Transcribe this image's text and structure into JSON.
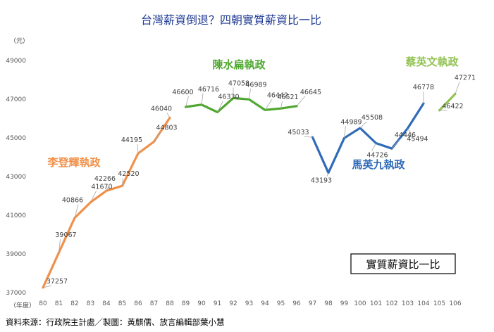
{
  "chart_data": {
    "type": "line",
    "title": "台灣薪資倒退？四朝實質薪資比一比",
    "y_unit_label": "（元）",
    "x_unit_label": "（年度）",
    "ylim": [
      37000,
      49000
    ],
    "y_ticks": [
      "37000",
      "39000",
      "41000",
      "43000",
      "45000",
      "47000",
      "49000"
    ],
    "x_ticks": [
      "80",
      "81",
      "82",
      "83",
      "84",
      "85",
      "86",
      "87",
      "88",
      "89",
      "90",
      "91",
      "92",
      "93",
      "94",
      "95",
      "96",
      "97",
      "98",
      "99",
      "100",
      "101",
      "102",
      "103",
      "104",
      "105",
      "106"
    ],
    "grid": false,
    "legend_box_text": "實質薪資比一比",
    "source": "資料來源：行政院主計處／製圖：黃麒儒、放言編輯部葉小慧",
    "series": [
      {
        "name": "李登輝執政",
        "color": "#f0904a",
        "x": [
          "80",
          "81",
          "82",
          "83",
          "84",
          "85",
          "86",
          "87",
          "88"
        ],
        "values": [
          37257,
          39067,
          40866,
          41670,
          42266,
          42520,
          44195,
          44803,
          46040
        ],
        "labels": [
          "37257",
          "39067",
          "40866",
          "41670",
          "42266",
          "42520",
          "44195",
          "44803",
          "46040"
        ]
      },
      {
        "name": "陳水扁執政",
        "color": "#4ea72e",
        "x": [
          "89",
          "90",
          "91",
          "92",
          "93",
          "94",
          "95",
          "96"
        ],
        "values": [
          46600,
          46716,
          46330,
          47058,
          46989,
          46442,
          46521,
          46645
        ],
        "labels": [
          "46600",
          "46716",
          "46330",
          "47058",
          "46989",
          "46442",
          "46521",
          "46645"
        ]
      },
      {
        "name": "馬英九執政",
        "color": "#2e6bb8",
        "x": [
          "97",
          "98",
          "99",
          "100",
          "101",
          "102",
          "103",
          "104"
        ],
        "values": [
          45033,
          43193,
          44989,
          45508,
          44726,
          44446,
          45494,
          46778
        ],
        "labels": [
          "45033",
          "43193",
          "44989",
          "45508",
          "44726",
          "44446",
          "45494",
          "46778"
        ]
      },
      {
        "name": "蔡英文執政",
        "color": "#92c353",
        "x": [
          "105",
          "106"
        ],
        "values": [
          46422,
          47271
        ],
        "labels": [
          "46422",
          "47271"
        ]
      }
    ]
  }
}
